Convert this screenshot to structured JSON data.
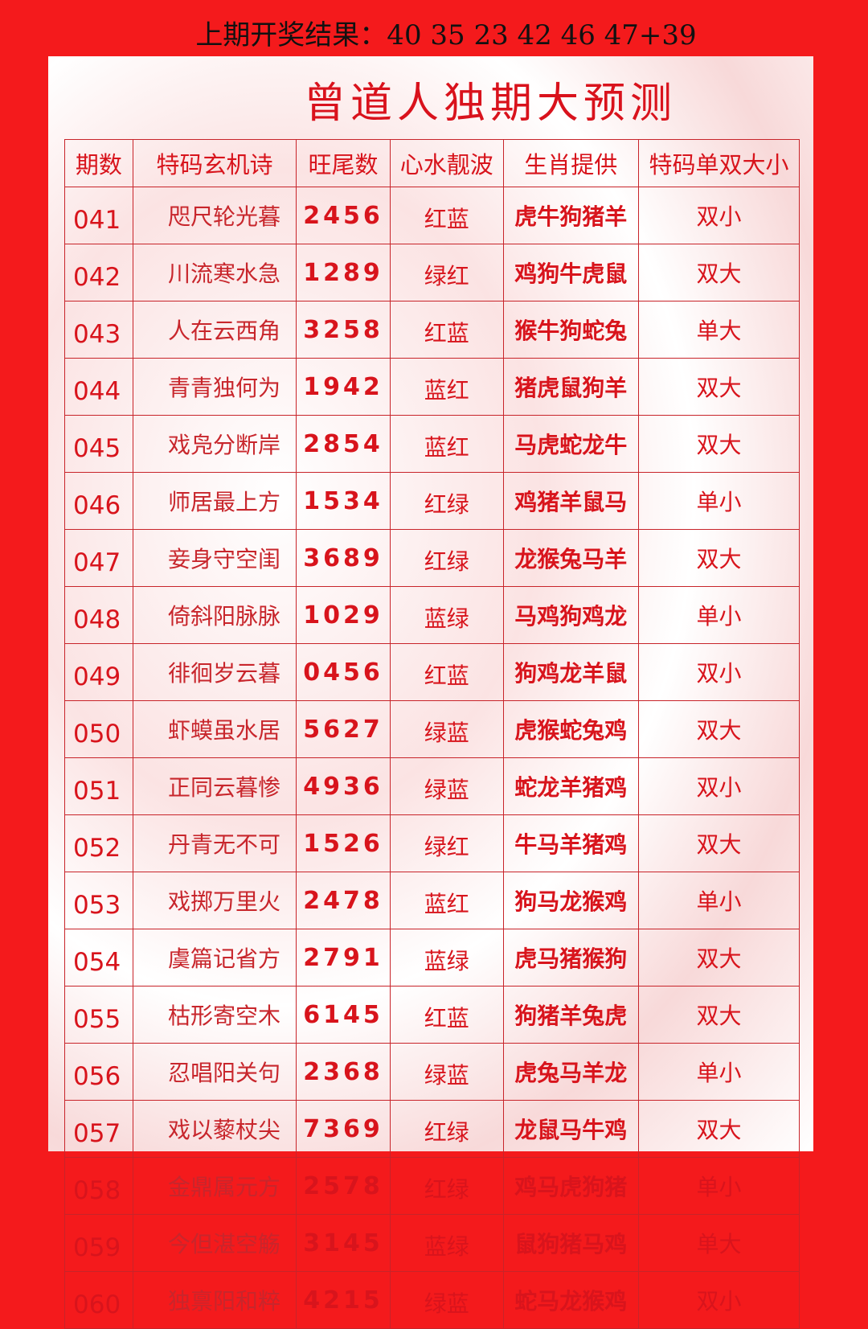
{
  "header": {
    "last_result": "上期开奖结果：40 35 23 42 46 47+39"
  },
  "title": "曾道人独期大预测",
  "table": {
    "columns": [
      "期数",
      "特码玄机诗",
      "旺尾数",
      "心水靓波",
      "生肖提供",
      "特码单双大小"
    ],
    "rows": [
      [
        "041",
        "咫尺轮光暮",
        "2456",
        "红蓝",
        "虎牛狗猪羊",
        "双小"
      ],
      [
        "042",
        "川流寒水急",
        "1289",
        "绿红",
        "鸡狗牛虎鼠",
        "双大"
      ],
      [
        "043",
        "人在云西角",
        "3258",
        "红蓝",
        "猴牛狗蛇兔",
        "单大"
      ],
      [
        "044",
        "青青独何为",
        "1942",
        "蓝红",
        "猪虎鼠狗羊",
        "双大"
      ],
      [
        "045",
        "戏凫分断岸",
        "2854",
        "蓝红",
        "马虎蛇龙牛",
        "双大"
      ],
      [
        "046",
        "师居最上方",
        "1534",
        "红绿",
        "鸡猪羊鼠马",
        "单小"
      ],
      [
        "047",
        "妾身守空闺",
        "3689",
        "红绿",
        "龙猴兔马羊",
        "双大"
      ],
      [
        "048",
        "倚斜阳脉脉",
        "1029",
        "蓝绿",
        "马鸡狗鸡龙",
        "单小"
      ],
      [
        "049",
        "徘徊岁云暮",
        "0456",
        "红蓝",
        "狗鸡龙羊鼠",
        "双小"
      ],
      [
        "050",
        "虾蟆虽水居",
        "5627",
        "绿蓝",
        "虎猴蛇兔鸡",
        "双大"
      ],
      [
        "051",
        "正同云暮惨",
        "4936",
        "绿蓝",
        "蛇龙羊猪鸡",
        "双小"
      ],
      [
        "052",
        "丹青无不可",
        "1526",
        "绿红",
        "牛马羊猪鸡",
        "双大"
      ],
      [
        "053",
        "戏掷万里火",
        "2478",
        "蓝红",
        "狗马龙猴鸡",
        "单小"
      ],
      [
        "054",
        "虞篇记省方",
        "2791",
        "蓝绿",
        "虎马猪猴狗",
        "双大"
      ],
      [
        "055",
        "枯形寄空木",
        "6145",
        "红蓝",
        "狗猪羊兔虎",
        "双大"
      ],
      [
        "056",
        "忍唱阳关句",
        "2368",
        "绿蓝",
        "虎兔马羊龙",
        "单小"
      ],
      [
        "057",
        "戏以藜杖尖",
        "7369",
        "红绿",
        "龙鼠马牛鸡",
        "双大"
      ],
      [
        "058",
        "金鼎属元方",
        "2578",
        "红绿",
        "鸡马虎狗猪",
        "单小"
      ],
      [
        "059",
        "今但湛空觞",
        "3145",
        "蓝绿",
        "鼠狗猪马鸡",
        "单大"
      ],
      [
        "060",
        "独禀阳和粹",
        "4215",
        "绿蓝",
        "蛇马龙猴鸡",
        "双小"
      ]
    ]
  },
  "colors": {
    "background": "#f41a1c",
    "text_red": "#d8141c",
    "header_text": "#111111"
  }
}
